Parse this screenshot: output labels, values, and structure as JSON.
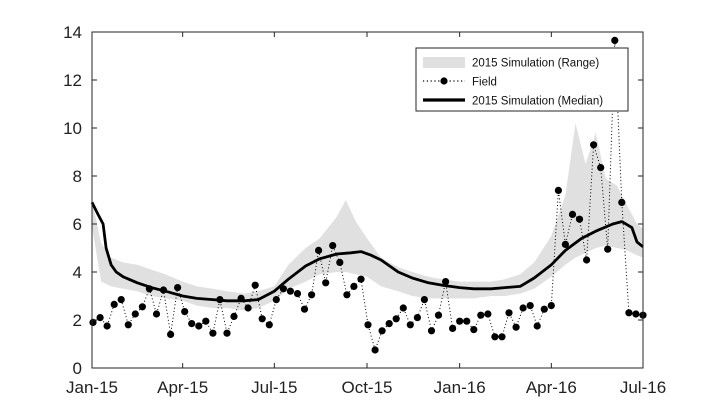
{
  "chart_data": {
    "type": "line",
    "title": "",
    "xlabel": "",
    "ylabel": "",
    "x_ticks": [
      "Jan-15",
      "Apr-15",
      "Jul-15",
      "Oct-15",
      "Jan-16",
      "Apr-16",
      "Jul-16"
    ],
    "xlim": [
      "2015-01-01",
      "2016-07-01"
    ],
    "ylim": [
      0,
      14
    ],
    "y_ticks": [
      0,
      2,
      4,
      6,
      8,
      10,
      12,
      14
    ],
    "grid": false,
    "legend_position": "top-right",
    "legend": [
      {
        "label": "2015 Simulation (Range)",
        "style": "shaded-band"
      },
      {
        "label": "Field",
        "style": "dotted-line-with-markers"
      },
      {
        "label": "2015 Simulation (Median)",
        "style": "thick-line"
      }
    ],
    "colors": {
      "band": "#e0e0e0",
      "median": "#000000",
      "field": "#000000"
    },
    "series": [
      {
        "name": "2015 Simulation (Range)",
        "kind": "band",
        "x": [
          "2015-01-01",
          "2015-01-10",
          "2015-01-20",
          "2015-02-01",
          "2015-02-15",
          "2015-03-01",
          "2015-03-15",
          "2015-04-01",
          "2015-04-15",
          "2015-05-01",
          "2015-05-15",
          "2015-06-01",
          "2015-06-15",
          "2015-07-01",
          "2015-07-15",
          "2015-08-01",
          "2015-08-15",
          "2015-09-01",
          "2015-09-10",
          "2015-09-20",
          "2015-10-01",
          "2015-10-15",
          "2015-11-01",
          "2015-11-15",
          "2015-12-01",
          "2015-12-15",
          "2016-01-01",
          "2016-01-15",
          "2016-02-01",
          "2016-02-15",
          "2016-03-01",
          "2016-03-15",
          "2016-04-01",
          "2016-04-15",
          "2016-04-25",
          "2016-05-05",
          "2016-05-15",
          "2016-05-25",
          "2016-06-05",
          "2016-06-15",
          "2016-06-25",
          "2016-07-01"
        ],
        "low": [
          5.9,
          3.6,
          3.4,
          3.3,
          3.2,
          3.0,
          2.9,
          2.8,
          2.6,
          2.5,
          2.5,
          2.4,
          2.5,
          2.8,
          3.3,
          3.6,
          3.9,
          4.0,
          4.0,
          3.9,
          3.8,
          3.4,
          3.2,
          3.0,
          2.9,
          2.9,
          2.9,
          2.9,
          3.0,
          3.0,
          3.1,
          3.3,
          3.8,
          4.3,
          4.6,
          4.8,
          5.0,
          5.1,
          5.0,
          4.9,
          4.7,
          4.6
        ],
        "high": [
          7.0,
          5.2,
          4.6,
          4.4,
          4.3,
          4.1,
          3.9,
          3.6,
          3.4,
          3.3,
          3.2,
          3.1,
          3.2,
          3.4,
          4.3,
          5.0,
          5.4,
          6.3,
          7.0,
          6.1,
          5.4,
          4.6,
          4.2,
          4.0,
          3.8,
          3.7,
          3.6,
          3.6,
          3.6,
          3.7,
          3.9,
          4.4,
          5.5,
          7.2,
          10.2,
          8.5,
          9.8,
          7.9,
          7.6,
          6.8,
          6.0,
          5.8
        ]
      },
      {
        "name": "2015 Simulation (Median)",
        "kind": "line",
        "x": [
          "2015-01-01",
          "2015-01-07",
          "2015-01-12",
          "2015-01-15",
          "2015-01-20",
          "2015-01-25",
          "2015-02-01",
          "2015-02-15",
          "2015-03-01",
          "2015-03-15",
          "2015-04-01",
          "2015-04-15",
          "2015-05-01",
          "2015-05-15",
          "2015-06-01",
          "2015-06-15",
          "2015-07-01",
          "2015-07-15",
          "2015-08-01",
          "2015-08-15",
          "2015-09-01",
          "2015-09-15",
          "2015-09-25",
          "2015-10-05",
          "2015-10-15",
          "2015-11-01",
          "2015-11-15",
          "2015-12-01",
          "2015-12-15",
          "2016-01-01",
          "2016-01-15",
          "2016-02-01",
          "2016-02-15",
          "2016-03-01",
          "2016-03-15",
          "2016-04-01",
          "2016-04-15",
          "2016-05-01",
          "2016-05-15",
          "2016-06-01",
          "2016-06-10",
          "2016-06-20",
          "2016-06-25",
          "2016-07-01"
        ],
        "y": [
          6.9,
          6.4,
          6.0,
          5.0,
          4.3,
          4.0,
          3.8,
          3.55,
          3.35,
          3.2,
          3.0,
          2.9,
          2.85,
          2.8,
          2.8,
          2.85,
          3.2,
          3.7,
          4.25,
          4.55,
          4.75,
          4.8,
          4.85,
          4.7,
          4.5,
          4.0,
          3.75,
          3.55,
          3.45,
          3.35,
          3.3,
          3.3,
          3.35,
          3.4,
          3.75,
          4.3,
          4.9,
          5.4,
          5.7,
          6.0,
          6.1,
          5.85,
          5.25,
          5.05
        ]
      },
      {
        "name": "Field",
        "kind": "dotted-markers",
        "x": [
          "2015-01-02",
          "2015-01-09",
          "2015-01-16",
          "2015-01-23",
          "2015-01-30",
          "2015-02-06",
          "2015-02-13",
          "2015-02-20",
          "2015-02-27",
          "2015-03-06",
          "2015-03-13",
          "2015-03-20",
          "2015-03-27",
          "2015-04-03",
          "2015-04-10",
          "2015-04-17",
          "2015-04-24",
          "2015-05-01",
          "2015-05-08",
          "2015-05-15",
          "2015-05-22",
          "2015-05-29",
          "2015-06-05",
          "2015-06-12",
          "2015-06-19",
          "2015-06-26",
          "2015-07-03",
          "2015-07-10",
          "2015-07-17",
          "2015-07-24",
          "2015-07-31",
          "2015-08-07",
          "2015-08-14",
          "2015-08-21",
          "2015-08-28",
          "2015-09-04",
          "2015-09-11",
          "2015-09-18",
          "2015-09-25",
          "2015-10-02",
          "2015-10-09",
          "2015-10-16",
          "2015-10-23",
          "2015-10-30",
          "2015-11-06",
          "2015-11-13",
          "2015-11-20",
          "2015-11-27",
          "2015-12-04",
          "2015-12-11",
          "2015-12-18",
          "2015-12-25",
          "2016-01-01",
          "2016-01-08",
          "2016-01-15",
          "2016-01-22",
          "2016-01-29",
          "2016-02-05",
          "2016-02-12",
          "2016-02-19",
          "2016-02-26",
          "2016-03-04",
          "2016-03-11",
          "2016-03-18",
          "2016-03-25",
          "2016-04-01",
          "2016-04-08",
          "2016-04-15",
          "2016-04-22",
          "2016-04-29",
          "2016-05-06",
          "2016-05-13",
          "2016-05-20",
          "2016-05-27",
          "2016-06-03",
          "2016-06-10",
          "2016-06-17",
          "2016-06-24",
          "2016-07-01"
        ],
        "y": [
          1.9,
          2.1,
          1.75,
          2.65,
          2.85,
          1.8,
          2.25,
          2.55,
          3.3,
          2.25,
          3.25,
          1.4,
          3.35,
          2.35,
          1.85,
          1.75,
          1.95,
          1.45,
          2.85,
          1.45,
          2.15,
          2.9,
          2.5,
          3.45,
          2.05,
          1.8,
          2.85,
          3.3,
          3.2,
          3.1,
          2.45,
          3.05,
          4.9,
          3.55,
          5.1,
          4.4,
          3.05,
          3.4,
          3.7,
          1.8,
          0.75,
          1.55,
          1.85,
          2.05,
          2.5,
          1.8,
          2.1,
          2.85,
          1.55,
          2.2,
          3.6,
          1.65,
          1.95,
          1.95,
          1.6,
          2.2,
          2.25,
          1.3,
          1.3,
          2.3,
          1.7,
          2.5,
          2.6,
          1.75,
          2.45,
          2.6,
          7.4,
          5.15,
          6.4,
          6.2,
          4.5,
          9.3,
          8.35,
          4.95,
          13.65,
          6.9,
          2.3,
          2.25,
          2.2
        ]
      }
    ]
  }
}
